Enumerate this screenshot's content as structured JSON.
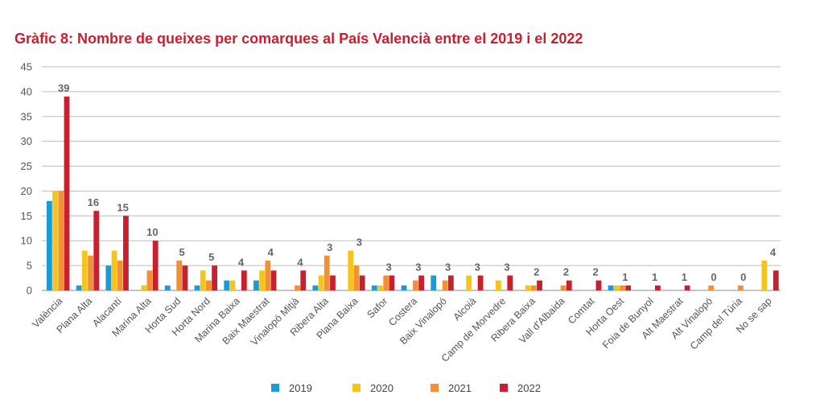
{
  "title": "Gràfic 8: Nombre de queixes per comarques al País Valencià entre el 2019 i el 2022",
  "colors": {
    "2019": "#1a9ad6",
    "2020": "#f6c51b",
    "2021": "#f29134",
    "2022": "#c8202f"
  },
  "chart_data": {
    "type": "bar",
    "title": "Gràfic 8: Nombre de queixes per comarques al País Valencià entre el 2019 i el 2022",
    "xlabel": "",
    "ylabel": "",
    "ylim": [
      0,
      45
    ],
    "yticks": [
      0,
      5,
      10,
      15,
      20,
      25,
      30,
      35,
      40,
      45
    ],
    "grid": true,
    "legend_position": "bottom",
    "categories": [
      "València",
      "Plana Alta",
      "Alacantí",
      "Marina Alta",
      "Horta Sud",
      "Horta Nord",
      "Marina Baixa",
      "Baix Maestrat",
      "Vinalopó Mitjà",
      "Ribera Alta",
      "Plana Baixa",
      "Safor",
      "Costera",
      "Baix Vinalopó",
      "Alcoià",
      "Camp de Morvedre",
      "Ribera Baixa",
      "Vall d'Albaida",
      "Comtat",
      "Horta Oest",
      "Foia de Bunyol",
      "Alt Maestrat",
      "Alt Vinalopó",
      "Camp del Túria",
      "No se sap"
    ],
    "series": [
      {
        "name": "2019",
        "values": [
          18,
          1,
          5,
          0,
          1,
          1,
          2,
          2,
          0,
          1,
          0,
          1,
          1,
          3,
          0,
          0,
          0,
          0,
          0,
          1,
          0,
          0,
          0,
          0,
          0
        ]
      },
      {
        "name": "2020",
        "values": [
          20,
          8,
          8,
          1,
          0,
          4,
          2,
          4,
          0,
          3,
          8,
          1,
          0,
          0,
          3,
          2,
          1,
          0,
          0,
          1,
          0,
          0,
          0,
          0,
          6
        ]
      },
      {
        "name": "2021",
        "values": [
          20,
          7,
          6,
          4,
          6,
          2,
          0,
          6,
          1,
          7,
          5,
          3,
          2,
          2,
          0,
          0,
          1,
          1,
          0,
          1,
          0,
          0,
          1,
          1,
          0
        ]
      },
      {
        "name": "2022",
        "values": [
          39,
          16,
          15,
          10,
          5,
          5,
          4,
          4,
          4,
          3,
          3,
          3,
          3,
          3,
          3,
          3,
          2,
          2,
          2,
          1,
          1,
          1,
          0,
          0,
          4
        ]
      }
    ],
    "data_labels": [
      "39",
      "16",
      "15",
      "10",
      "5",
      "5",
      "4",
      "4",
      "4",
      "3",
      "3",
      "3",
      "3",
      "3",
      "3",
      "3",
      "2",
      "2",
      "2",
      "1",
      "1",
      "1",
      "0",
      "0",
      "4"
    ]
  }
}
